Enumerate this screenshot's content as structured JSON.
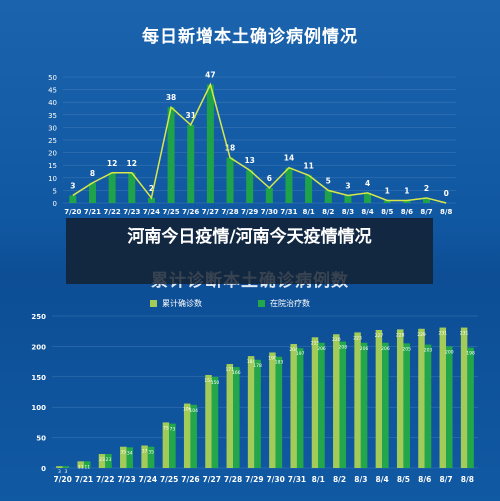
{
  "overlay": {
    "caption": "河南今日疫情/河南今天疫情情况"
  },
  "colors": {
    "background": "#1059a3",
    "bar_green": "#1fa34a",
    "line_yellow": "#d7e94a",
    "bar_light_green": "#a3cb58",
    "text": "#ffffff"
  },
  "chart_data": [
    {
      "type": "bar",
      "title": "每日新增本土确诊病例情况",
      "categories": [
        "7/20",
        "7/21",
        "7/22",
        "7/23",
        "7/24",
        "7/25",
        "7/26",
        "7/27",
        "7/28",
        "7/29",
        "7/30",
        "7/31",
        "8/1",
        "8/2",
        "8/3",
        "8/4",
        "8/5",
        "8/6",
        "8/7",
        "8/8"
      ],
      "values": [
        3,
        8,
        12,
        12,
        2,
        38,
        31,
        47,
        18,
        13,
        6,
        14,
        11,
        5,
        3,
        4,
        1,
        1,
        2,
        0
      ],
      "line_overlay": true,
      "ylim": [
        0,
        50
      ],
      "yticks": [
        0,
        5,
        10,
        15,
        20,
        25,
        30,
        35,
        40,
        45,
        50
      ],
      "grid": true
    },
    {
      "type": "bar",
      "title": "累计诊断本土确诊病例数",
      "categories": [
        "7/20",
        "7/21",
        "7/22",
        "7/23",
        "7/24",
        "7/25",
        "7/26",
        "7/27",
        "7/28",
        "7/29",
        "7/30",
        "7/31",
        "8/1",
        "8/2",
        "8/3",
        "8/4",
        "8/5",
        "8/6",
        "8/7",
        "8/8"
      ],
      "series": [
        {
          "name": "累计确诊数",
          "values": [
            3,
            11,
            23,
            35,
            37,
            75,
            106,
            153,
            171,
            184,
            190,
            204,
            215,
            220,
            223,
            227,
            228,
            229,
            231,
            231
          ]
        },
        {
          "name": "在院治疗数",
          "values": [
            3,
            11,
            23,
            34,
            35,
            73,
            104,
            150,
            166,
            178,
            183,
            197,
            206,
            208,
            206,
            206,
            205,
            203,
            200,
            198
          ]
        }
      ],
      "ylim": [
        0,
        250
      ],
      "yticks": [
        0,
        50,
        100,
        150,
        200,
        250
      ],
      "grid": true,
      "legend_position": "top-center"
    }
  ]
}
